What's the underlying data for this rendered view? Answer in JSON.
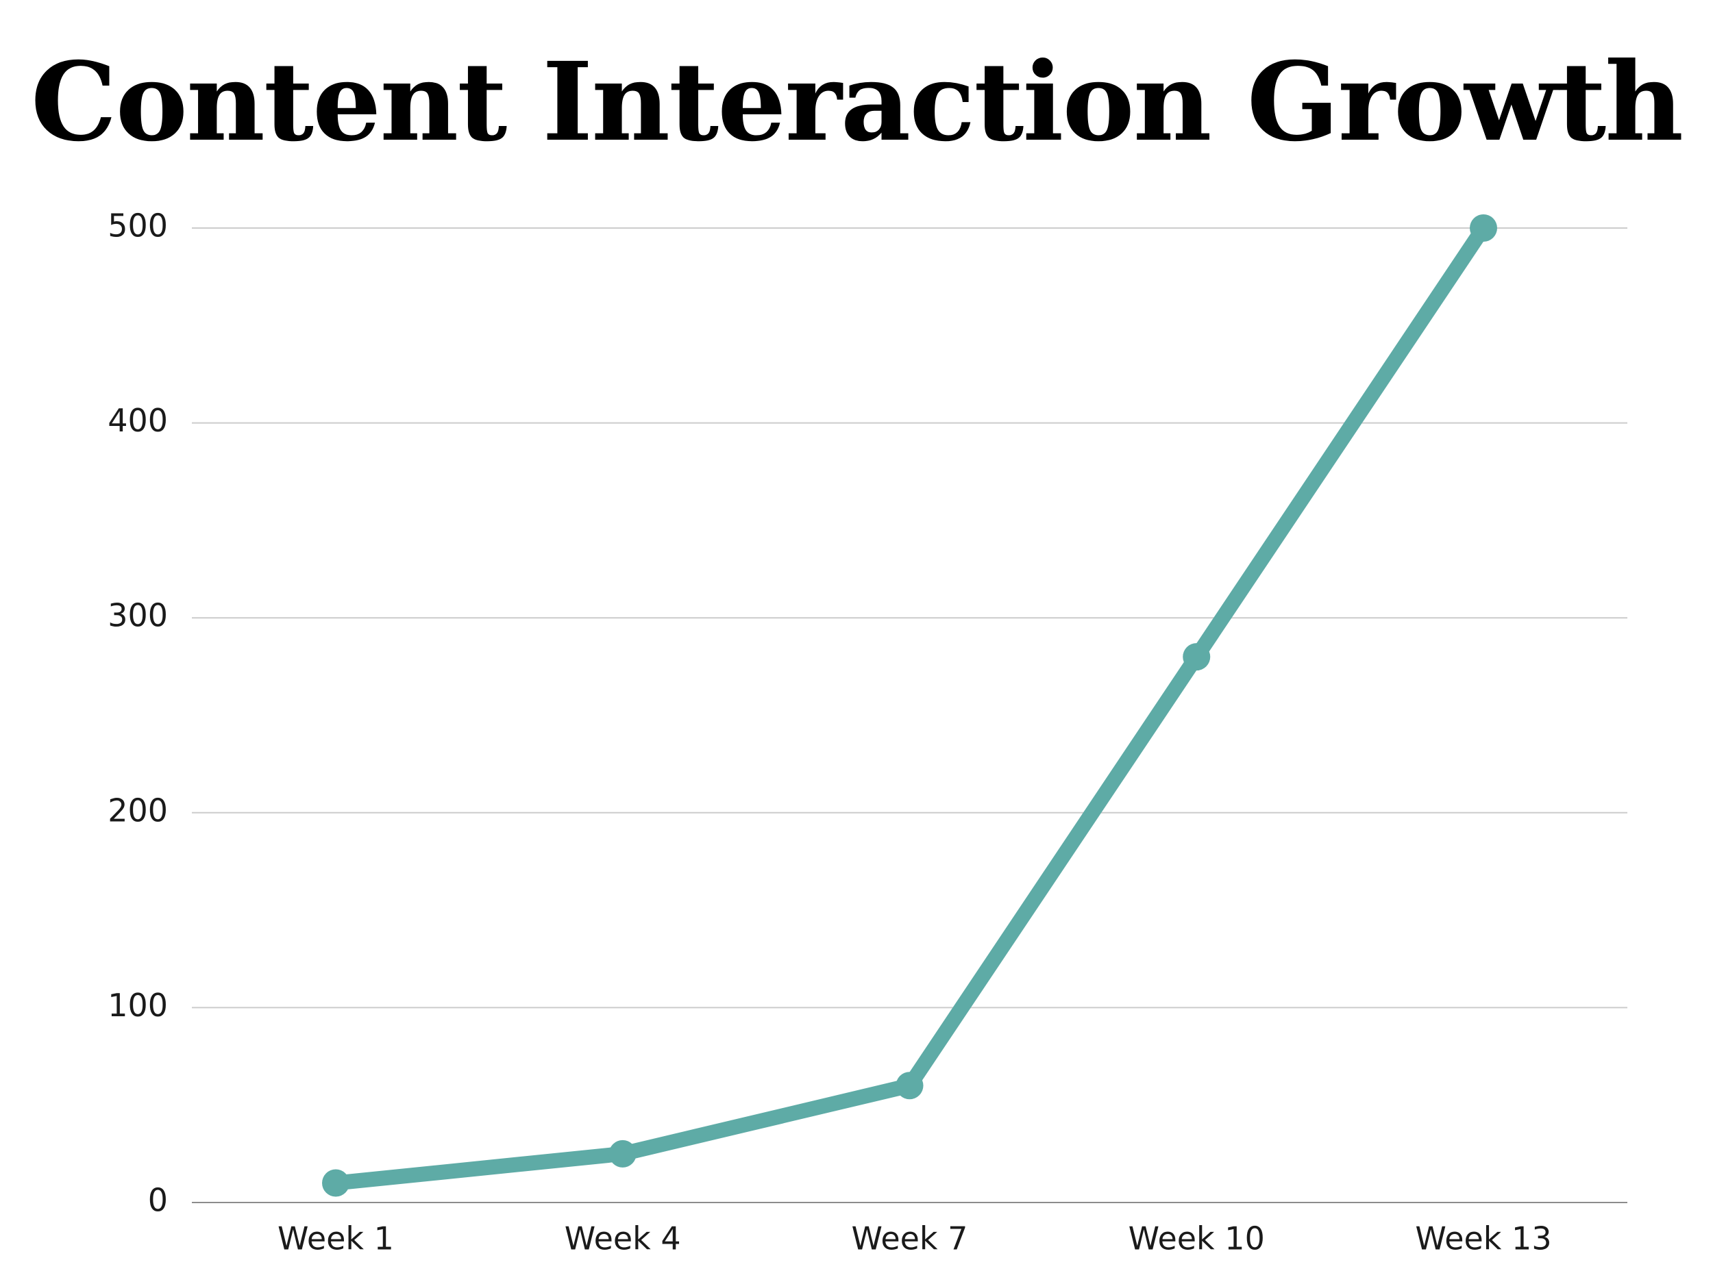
{
  "chart_data": {
    "type": "line",
    "title": "Content Interaction Growth",
    "categories": [
      "Week 1",
      "Week 4",
      "Week 7",
      "Week 10",
      "Week 13"
    ],
    "series": [
      {
        "values": [
          10,
          25,
          60,
          280,
          500
        ]
      }
    ],
    "ylim": [
      0,
      500
    ],
    "yticks": [
      0,
      100,
      200,
      300,
      400,
      500
    ],
    "grid": true,
    "xlabel": "",
    "ylabel": "",
    "colors": {
      "series": "#5eaba6"
    }
  }
}
